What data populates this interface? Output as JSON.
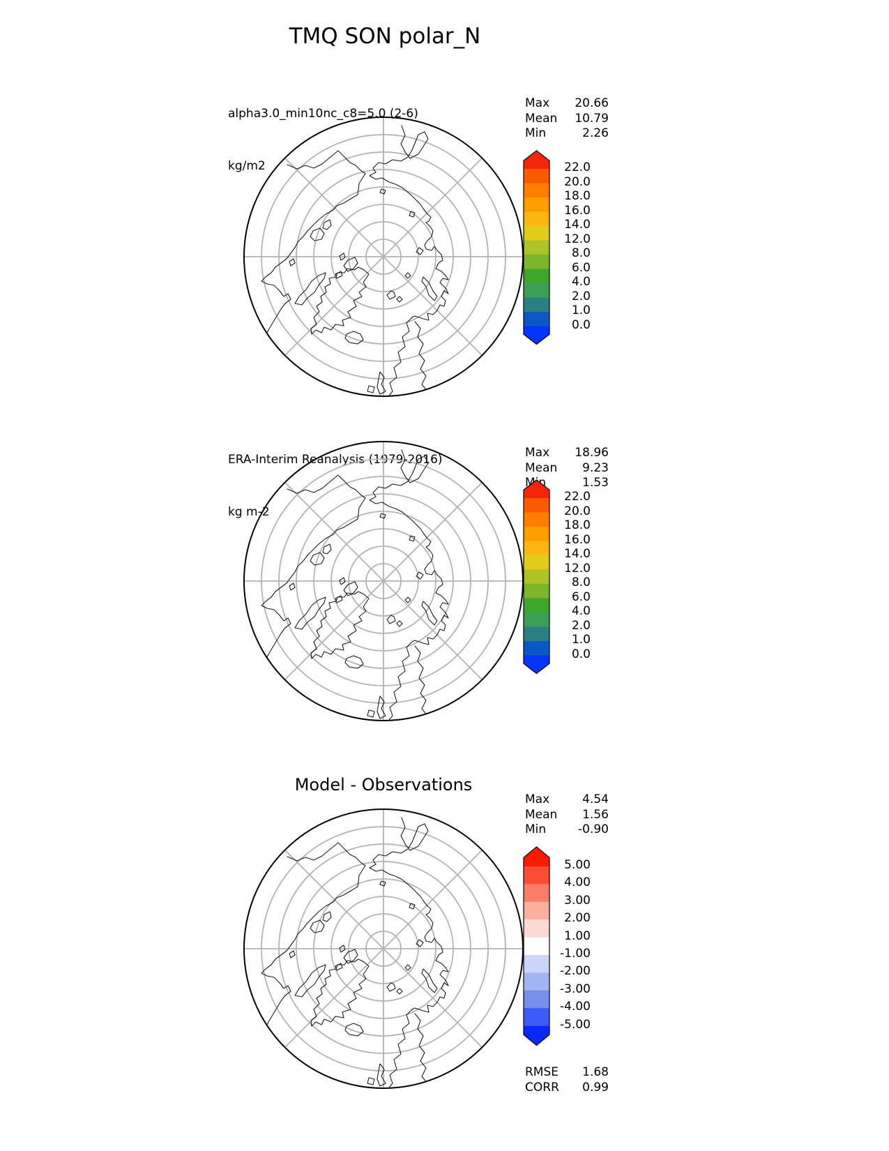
{
  "title": "TMQ SON polar_N",
  "panels": [
    {
      "name": "model",
      "subtitle_line1": "alpha3.0_min10nc_c8=5.0 (2-6)",
      "subtitle_line2": "kg/m2",
      "stats": [
        {
          "label": "Max",
          "value": "20.66"
        },
        {
          "label": "Mean",
          "value": "10.79"
        },
        {
          "label": "Min",
          "value": "2.26"
        }
      ],
      "colorbar": {
        "tick_labels": [
          "22.0",
          "20.0",
          "18.0",
          "16.0",
          "14.0",
          "12.0",
          "8.0",
          "6.0",
          "4.0",
          "2.0",
          "1.0",
          "0.0"
        ],
        "band_colors": [
          "#FB5A00",
          "#FF7E00",
          "#FF9E00",
          "#FBB713",
          "#E2CB1B",
          "#AEC328",
          "#7CB42A",
          "#3EA42C",
          "#3C9E55",
          "#2B7F83",
          "#0C59C6"
        ],
        "arrow_top_color": "#F3250B",
        "arrow_bottom_color": "#0433FE"
      }
    },
    {
      "name": "observations",
      "subtitle_line1": "ERA-Interim Reanalysis (1979-2016)",
      "subtitle_line2": "kg m-2",
      "stats": [
        {
          "label": "Max",
          "value": "18.96"
        },
        {
          "label": "Mean",
          "value": "9.23"
        },
        {
          "label": "Min",
          "value": "1.53"
        }
      ],
      "colorbar": {
        "tick_labels": [
          "22.0",
          "20.0",
          "18.0",
          "16.0",
          "14.0",
          "12.0",
          "8.0",
          "6.0",
          "4.0",
          "2.0",
          "1.0",
          "0.0"
        ],
        "band_colors": [
          "#FB5A00",
          "#FF7E00",
          "#FF9E00",
          "#FBB713",
          "#E2CB1B",
          "#AEC328",
          "#7CB42A",
          "#3EA42C",
          "#3C9E55",
          "#2B7F83",
          "#0C59C6"
        ],
        "arrow_top_color": "#F3250B",
        "arrow_bottom_color": "#0433FE"
      }
    },
    {
      "name": "difference",
      "panel_title": "Model - Observations",
      "stats": [
        {
          "label": "Max",
          "value": "4.54"
        },
        {
          "label": "Mean",
          "value": "1.56"
        },
        {
          "label": "Min",
          "value": "-0.90"
        }
      ],
      "extra_stats": [
        {
          "label": "RMSE",
          "value": "1.68"
        },
        {
          "label": "CORR",
          "value": "0.99"
        }
      ],
      "colorbar": {
        "tick_labels": [
          "5.00",
          "4.00",
          "3.00",
          "2.00",
          "1.00",
          "-1.00",
          "-2.00",
          "-3.00",
          "-4.00",
          "-5.00"
        ],
        "band_colors": [
          "#FB4E38",
          "#F97E68",
          "#FAAE9E",
          "#FCD9D2",
          "#FFFFFF",
          "#CBD5F7",
          "#A4B5F3",
          "#7890EC",
          "#3E5BFA"
        ],
        "arrow_top_color": "#FD1A00",
        "arrow_bottom_color": "#0A27FE"
      }
    }
  ],
  "chart_data": {
    "type": "heatmap",
    "title": "TMQ SON polar_N",
    "projection": "north polar stereographic, 8 radial spokes, 7 latitude rings",
    "panels": [
      {
        "label": "alpha3.0_min10nc_c8=5.0 (2-6)",
        "units": "kg/m2",
        "max": 20.66,
        "mean": 10.79,
        "min": 2.26,
        "colorbar_levels": [
          0.0,
          1.0,
          2.0,
          4.0,
          6.0,
          8.0,
          12.0,
          14.0,
          16.0,
          18.0,
          20.0,
          22.0
        ]
      },
      {
        "label": "ERA-Interim Reanalysis (1979-2016)",
        "units": "kg m-2",
        "max": 18.96,
        "mean": 9.23,
        "min": 1.53,
        "colorbar_levels": [
          0.0,
          1.0,
          2.0,
          4.0,
          6.0,
          8.0,
          12.0,
          14.0,
          16.0,
          18.0,
          20.0,
          22.0
        ]
      },
      {
        "label": "Model - Observations",
        "max": 4.54,
        "mean": 1.56,
        "min": -0.9,
        "rmse": 1.68,
        "corr": 0.99,
        "colorbar_levels": [
          -5.0,
          -4.0,
          -3.0,
          -2.0,
          -1.0,
          1.0,
          2.0,
          3.0,
          4.0,
          5.0
        ]
      }
    ]
  }
}
